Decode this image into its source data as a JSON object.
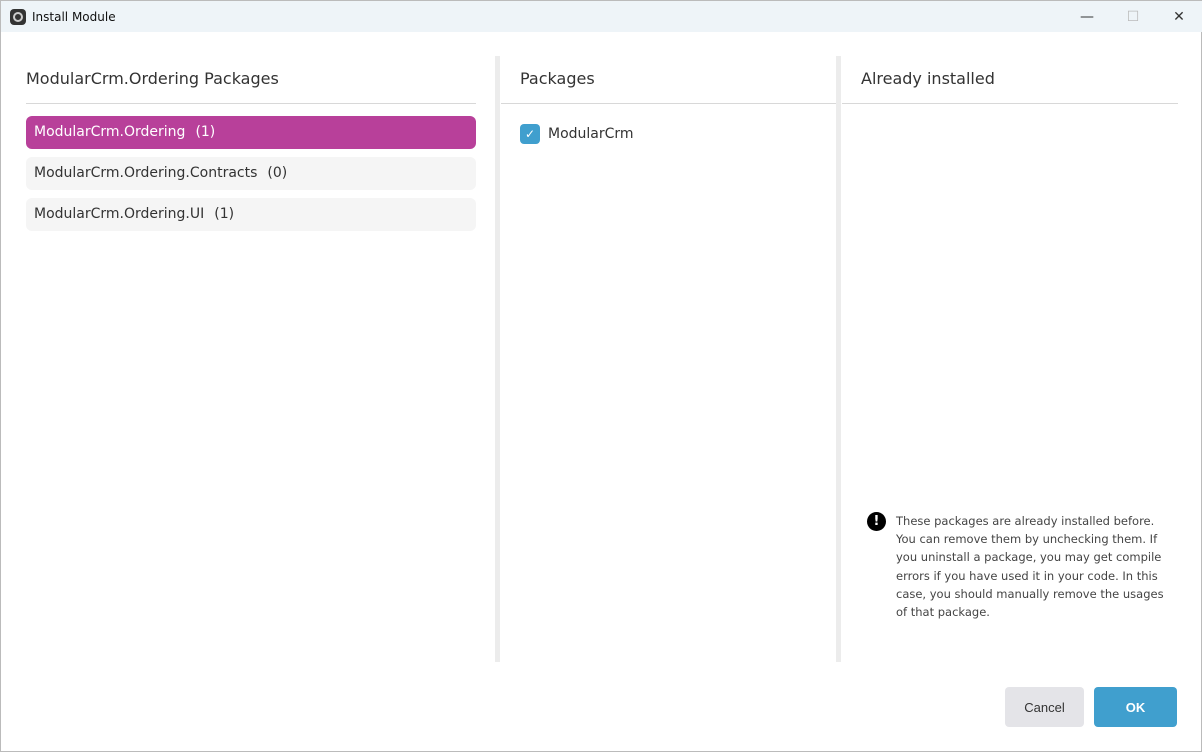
{
  "window": {
    "title": "Install Module",
    "controls": {
      "minimize": "—",
      "maximize": "☐",
      "close": "✕"
    }
  },
  "left": {
    "header": "ModularCrm.Ordering Packages",
    "items": [
      {
        "label": "ModularCrm.Ordering",
        "count": "(1)",
        "selected": true
      },
      {
        "label": "ModularCrm.Ordering.Contracts",
        "count": "(0)",
        "selected": false
      },
      {
        "label": "ModularCrm.Ordering.UI",
        "count": "(1)",
        "selected": false
      }
    ]
  },
  "middle": {
    "header": "Packages",
    "packages": [
      {
        "label": "ModularCrm",
        "checked": true
      }
    ]
  },
  "right": {
    "header": "Already installed",
    "note": "These packages are already installed before. You can remove them by unchecking them. If you uninstall a package, you may get compile errors if you have used it in your code. In this case, you should manually remove the usages of that package.",
    "note_icon": "exclamation-circle-icon"
  },
  "buttons": {
    "cancel": "Cancel",
    "ok": "OK"
  },
  "colors": {
    "accent": "#b8409a",
    "primary": "#409fce"
  }
}
